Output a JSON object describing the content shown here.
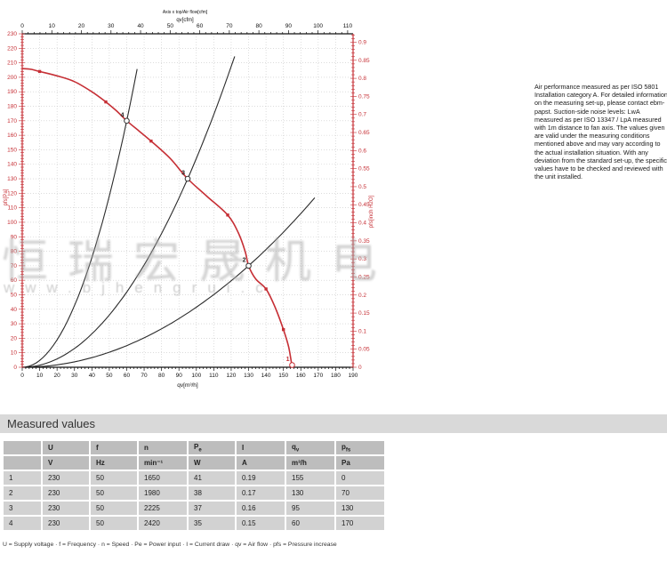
{
  "colors": {
    "accent_red": "#c62f35",
    "curve_black": "#2b2b2b",
    "grid_gray": "#c8c8c8",
    "header_cell_gray": "#bdbdbd",
    "data_cell_gray": "#d2d2d2",
    "section_bar_gray": "#d9d9d9",
    "watermark_gray": "#a9a9a9"
  },
  "chart_data": {
    "type": "line",
    "title_small": "Axis x top/Air flow[cfm]",
    "axes": {
      "top": {
        "label": "qv[cfm]",
        "min": 0,
        "max": 110,
        "major": 10,
        "minor": 2,
        "cfm_per_m3h": 0.58858
      },
      "bottom": {
        "label": "qv[m³/h]",
        "min": 0,
        "max": 190,
        "major": 10,
        "minor": 2
      },
      "left": {
        "label": "pfs[Pa]",
        "min": 0,
        "max": 230,
        "major": 10,
        "minor": 2
      },
      "right": {
        "label": "pfs[inch H2O]",
        "min": 0,
        "max": 0.923,
        "major": 0.05,
        "minor": 0.01,
        "pa_per_unit": 249.09
      }
    },
    "grid": {
      "x_step": 10,
      "y_step": 10
    },
    "fan_curve": {
      "name": "fan-pressure-curve",
      "points": [
        [
          0,
          206
        ],
        [
          5,
          205.5
        ],
        [
          10,
          204
        ],
        [
          20,
          201
        ],
        [
          30,
          197
        ],
        [
          40,
          190
        ],
        [
          48,
          183
        ],
        [
          54,
          177
        ],
        [
          60,
          170
        ],
        [
          67,
          163
        ],
        [
          74,
          156
        ],
        [
          85,
          144
        ],
        [
          95,
          130
        ],
        [
          106,
          118
        ],
        [
          118,
          105
        ],
        [
          124,
          93
        ],
        [
          128,
          80
        ],
        [
          130,
          70
        ],
        [
          134,
          61
        ],
        [
          140,
          54
        ],
        [
          145,
          42
        ],
        [
          150,
          26
        ],
        [
          153,
          14
        ],
        [
          155,
          0
        ]
      ],
      "markers": [
        [
          10,
          204
        ],
        [
          48,
          183
        ],
        [
          74,
          156
        ],
        [
          118,
          105
        ],
        [
          140,
          54
        ],
        [
          150,
          26
        ]
      ]
    },
    "system_curves": [
      {
        "name": "system-curve-through-point-4",
        "through": [
          60,
          170
        ],
        "q_end": 67
      },
      {
        "name": "system-curve-through-point-3",
        "through": [
          95,
          130
        ],
        "q_end": 123.5
      },
      {
        "name": "system-curve-through-point-2",
        "through": [
          130,
          70
        ],
        "q_end": 168.5
      }
    ],
    "measured_points": [
      {
        "label": "1",
        "qv": 155,
        "pfs": 0
      },
      {
        "label": "2",
        "qv": 130,
        "pfs": 70
      },
      {
        "label": "3",
        "qv": 95,
        "pfs": 130
      },
      {
        "label": "4",
        "qv": 60,
        "pfs": 170
      }
    ]
  },
  "watermark": {
    "line1": "恒瑞宏晟机电",
    "line2": "www.bjhengrui.c"
  },
  "note": {
    "text": "Air performance measured as per ISO 5801 Installation category A. For detailed information on the measuring set-up, please contact ebm-papst. Suction-side noise levels: LwA measured as per ISO 13347 / LpA measured with 1m distance to fan axis. The values given are valid under the measuring conditions mentioned above and may vary according to the actual installation situation. With any deviation from the standard set-up, the specific values have to be checked and reviewed with the unit installed."
  },
  "measured": {
    "title": "Measured values",
    "columns": [
      {
        "base": "",
        "sub": "",
        "unit": ""
      },
      {
        "base": "U",
        "sub": "",
        "unit": "V"
      },
      {
        "base": "f",
        "sub": "",
        "unit": "Hz"
      },
      {
        "base": "n",
        "sub": "",
        "unit": "min⁻¹"
      },
      {
        "base": "P",
        "sub": "e",
        "unit": "W"
      },
      {
        "base": "I",
        "sub": "",
        "unit": "A"
      },
      {
        "base": "q",
        "sub": "v",
        "unit": "m³/h"
      },
      {
        "base": "p",
        "sub": "fs",
        "unit": "Pa"
      }
    ],
    "rows": [
      [
        "1",
        "230",
        "50",
        "1650",
        "41",
        "0.19",
        "155",
        "0"
      ],
      [
        "2",
        "230",
        "50",
        "1980",
        "38",
        "0.17",
        "130",
        "70"
      ],
      [
        "3",
        "230",
        "50",
        "2225",
        "37",
        "0.16",
        "95",
        "130"
      ],
      [
        "4",
        "230",
        "50",
        "2420",
        "35",
        "0.15",
        "60",
        "170"
      ]
    ],
    "footnote": "U = Supply voltage · f = Frequency · n = Speed · Pe = Power input · I = Current draw · qv = Air flow · pfs = Pressure increase"
  }
}
